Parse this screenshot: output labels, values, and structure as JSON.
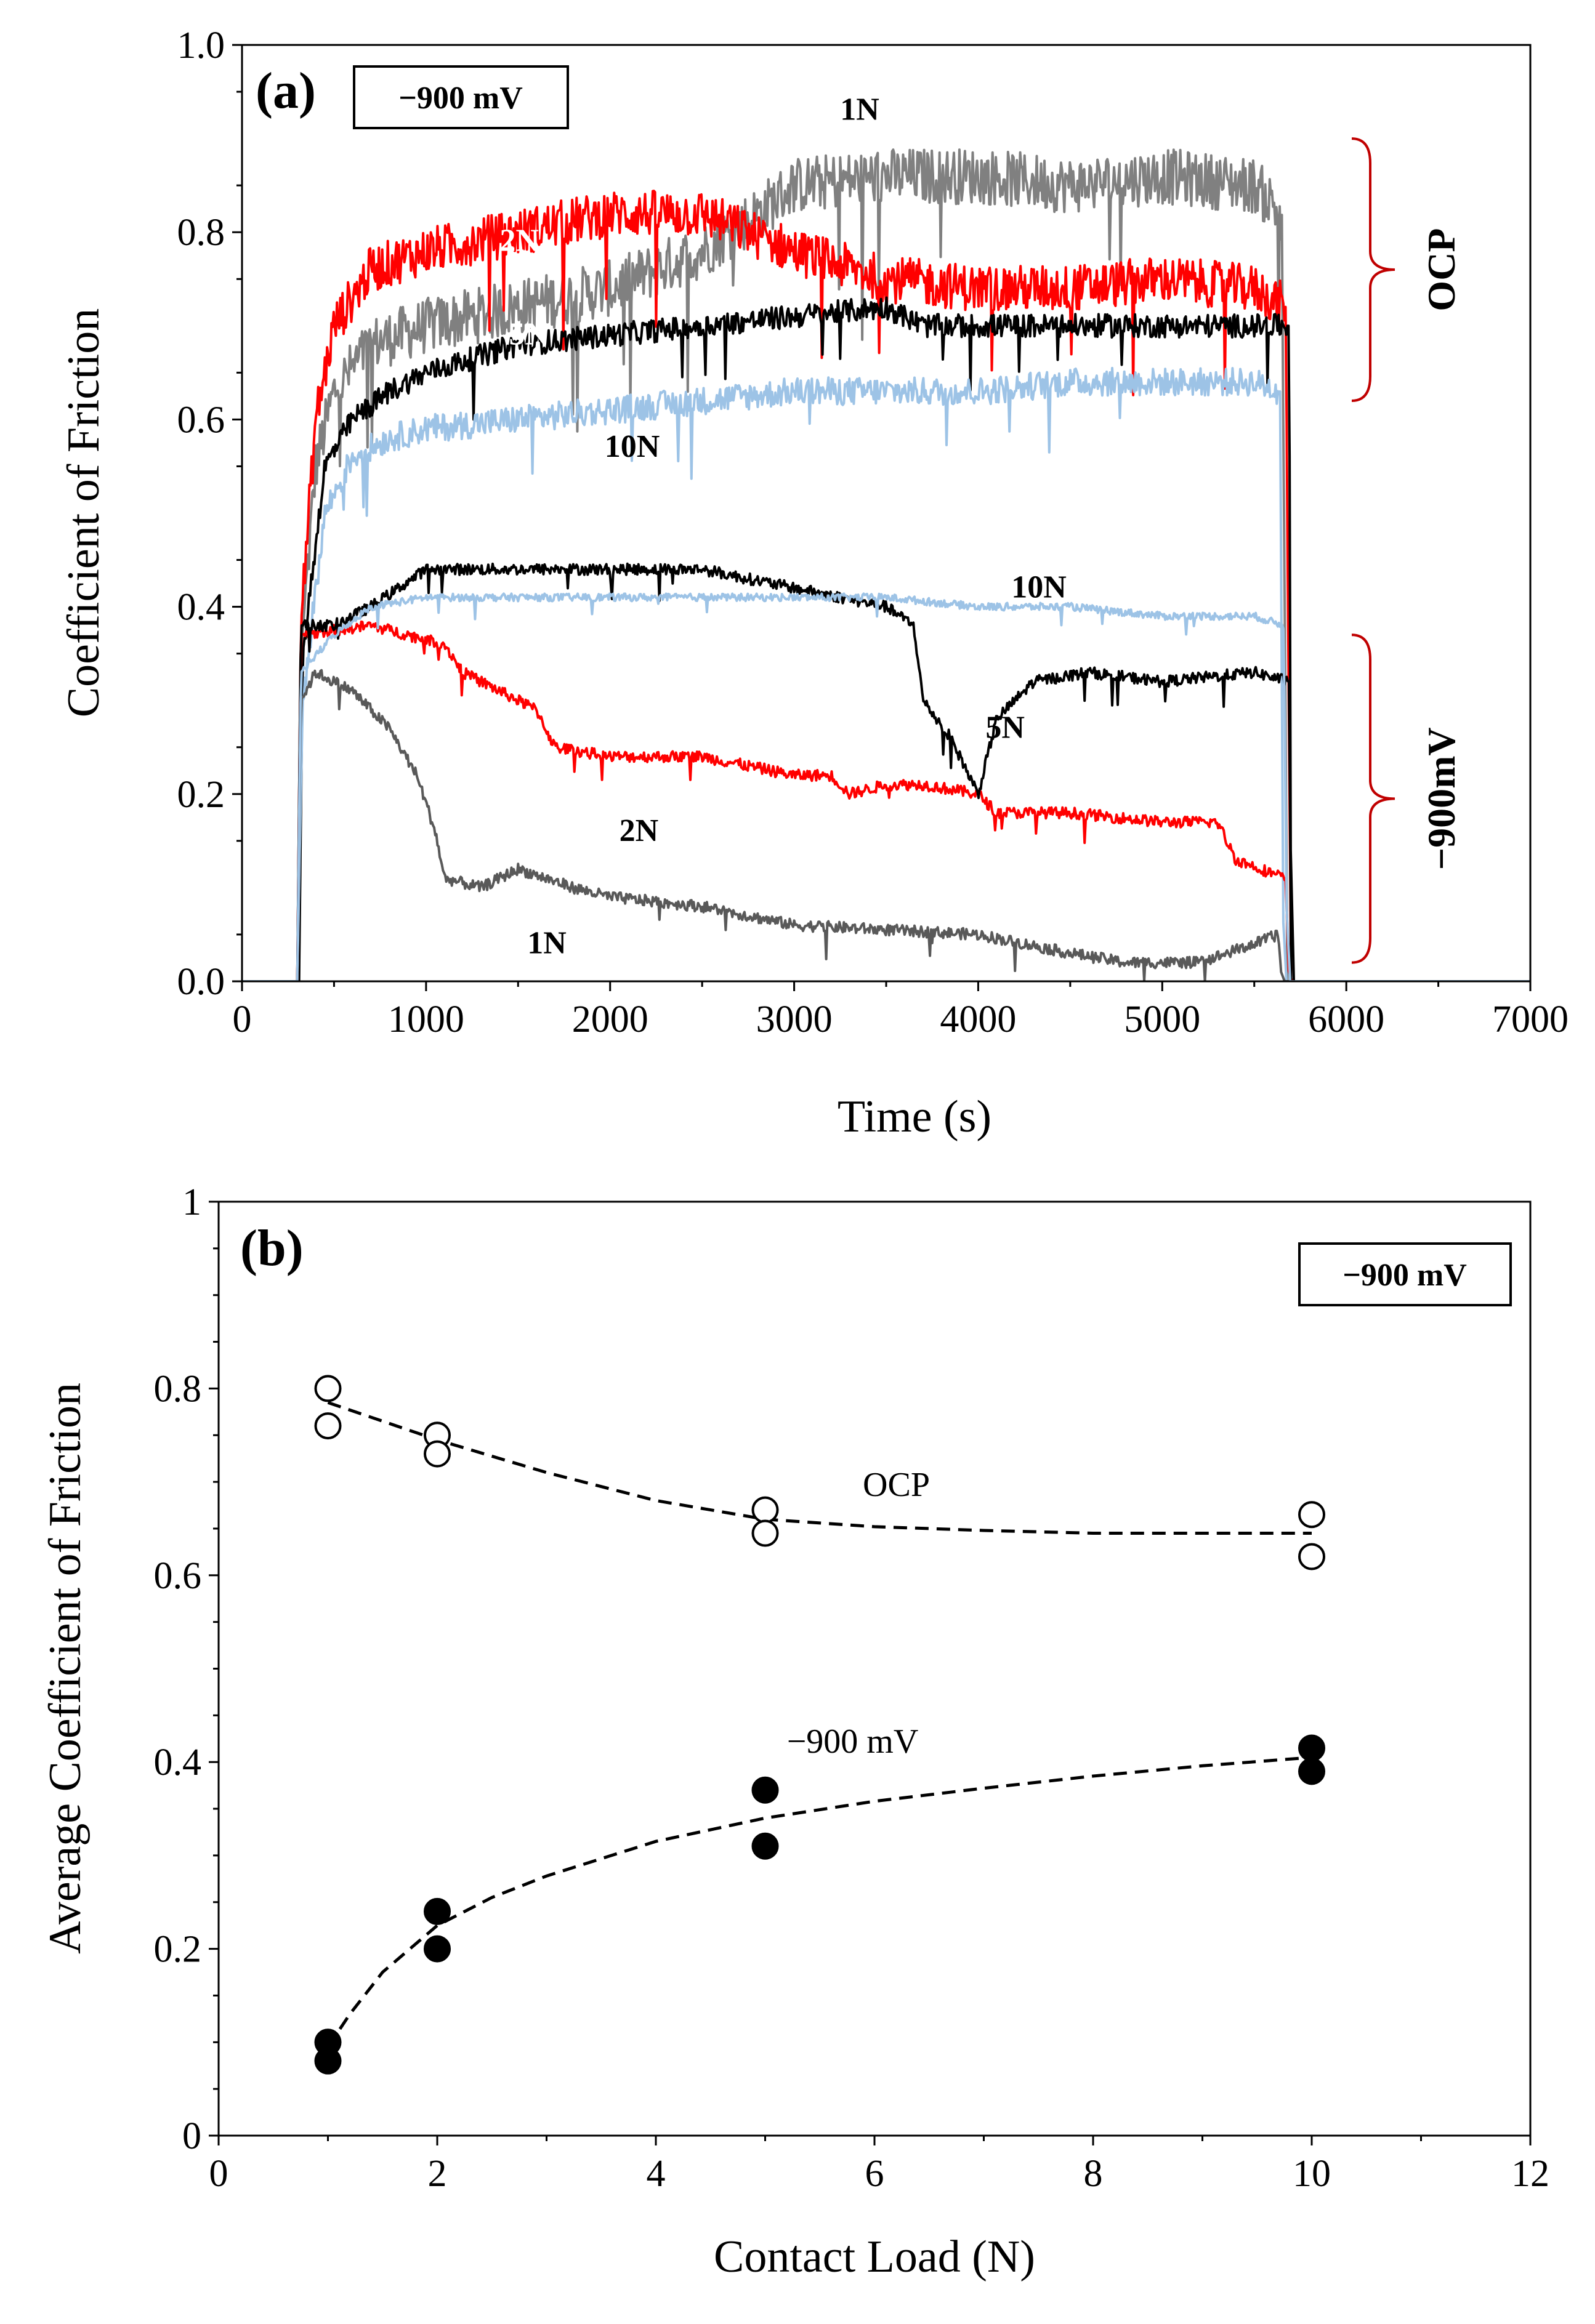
{
  "colors": {
    "n1_ocp": "#808080",
    "n2_ocp": "#ff0000",
    "n5_ocp": "#000000",
    "n10_ocp": "#9dc3e6",
    "n1_cat": "#595959",
    "n2_cat": "#ff0000",
    "n5_cat": "#000000",
    "n10_cat": "#9dc3e6",
    "bracket": "#c00000"
  },
  "chart_data": [
    {
      "id": "a",
      "type": "line",
      "panel_label": "(a)",
      "box_label": "−900 mV",
      "xlabel": "Time (s)",
      "ylabel": "Coefficient of Friction",
      "xlim": [
        0,
        7000
      ],
      "ylim": [
        0,
        1.0
      ],
      "x_ticks": [
        "0",
        "1000",
        "2000",
        "3000",
        "4000",
        "5000",
        "6000",
        "7000"
      ],
      "y_ticks": [
        "0.0",
        "0.2",
        "0.4",
        "0.6",
        "0.8",
        "1.0"
      ],
      "regions": [
        {
          "label": "OCP",
          "range": [
            0.62,
            0.9
          ],
          "position": "right"
        },
        {
          "label": "−900mV",
          "range": [
            0.02,
            0.37
          ],
          "position": "right"
        }
      ],
      "series": [
        {
          "name": "1N",
          "condition": "OCP",
          "color_key": "n1_ocp",
          "label": "1N",
          "label_at": [
            3250,
            0.92
          ],
          "label_color": "#000000",
          "noise": 0.06,
          "points": [
            [
              0,
              0
            ],
            [
              310,
              0
            ],
            [
              320,
              0.35
            ],
            [
              400,
              0.55
            ],
            [
              500,
              0.63
            ],
            [
              700,
              0.68
            ],
            [
              1000,
              0.7
            ],
            [
              1500,
              0.72
            ],
            [
              2000,
              0.74
            ],
            [
              2500,
              0.78
            ],
            [
              2800,
              0.82
            ],
            [
              3000,
              0.85
            ],
            [
              3500,
              0.86
            ],
            [
              4000,
              0.86
            ],
            [
              4500,
              0.85
            ],
            [
              5000,
              0.86
            ],
            [
              5500,
              0.85
            ],
            [
              5650,
              0.82
            ],
            [
              5680,
              0
            ],
            [
              7000,
              0
            ]
          ]
        },
        {
          "name": "2N",
          "condition": "OCP",
          "color_key": "n2_ocp",
          "label": "2N",
          "label_at": [
            1400,
            0.78
          ],
          "label_color": "#ffffff",
          "noise": 0.05,
          "points": [
            [
              0,
              0
            ],
            [
              300,
              0
            ],
            [
              320,
              0.38
            ],
            [
              400,
              0.6
            ],
            [
              500,
              0.7
            ],
            [
              700,
              0.76
            ],
            [
              1000,
              0.78
            ],
            [
              1500,
              0.8
            ],
            [
              2000,
              0.82
            ],
            [
              2500,
              0.82
            ],
            [
              3000,
              0.78
            ],
            [
              3500,
              0.75
            ],
            [
              4000,
              0.74
            ],
            [
              4500,
              0.74
            ],
            [
              5000,
              0.75
            ],
            [
              5500,
              0.74
            ],
            [
              5670,
              0.72
            ],
            [
              5700,
              0
            ],
            [
              7000,
              0
            ]
          ]
        },
        {
          "name": "5N",
          "condition": "OCP",
          "color_key": "n5_ocp",
          "label": "5N",
          "label_at": [
            1450,
            0.68
          ],
          "label_color": "#ffffff",
          "noise": 0.025,
          "points": [
            [
              0,
              0
            ],
            [
              310,
              0
            ],
            [
              330,
              0.35
            ],
            [
              450,
              0.55
            ],
            [
              600,
              0.6
            ],
            [
              800,
              0.63
            ],
            [
              1000,
              0.65
            ],
            [
              1500,
              0.68
            ],
            [
              2000,
              0.69
            ],
            [
              2500,
              0.7
            ],
            [
              3000,
              0.71
            ],
            [
              3500,
              0.72
            ],
            [
              3700,
              0.7
            ],
            [
              4500,
              0.7
            ],
            [
              5000,
              0.7
            ],
            [
              5500,
              0.7
            ],
            [
              5690,
              0.7
            ],
            [
              5700,
              0
            ],
            [
              7000,
              0
            ]
          ]
        },
        {
          "name": "10N",
          "condition": "OCP",
          "color_key": "n10_ocp",
          "label": "10N",
          "label_at": [
            1970,
            0.56
          ],
          "label_color": "#000000",
          "noise": 0.03,
          "points": [
            [
              0,
              0
            ],
            [
              300,
              0
            ],
            [
              330,
              0.3
            ],
            [
              450,
              0.5
            ],
            [
              600,
              0.56
            ],
            [
              800,
              0.58
            ],
            [
              1000,
              0.59
            ],
            [
              1500,
              0.6
            ],
            [
              2000,
              0.61
            ],
            [
              2500,
              0.62
            ],
            [
              3000,
              0.63
            ],
            [
              3500,
              0.63
            ],
            [
              4000,
              0.63
            ],
            [
              4500,
              0.64
            ],
            [
              5000,
              0.64
            ],
            [
              5500,
              0.64
            ],
            [
              5640,
              0.63
            ],
            [
              5660,
              0
            ],
            [
              7000,
              0
            ]
          ]
        },
        {
          "name": "1N",
          "condition": "-900mV",
          "color_key": "n1_cat",
          "label": "1N",
          "label_at": [
            1550,
            0.03
          ],
          "label_color": "#000000",
          "noise": 0.012,
          "points": [
            [
              0,
              0
            ],
            [
              300,
              0
            ],
            [
              320,
              0.3
            ],
            [
              400,
              0.33
            ],
            [
              600,
              0.31
            ],
            [
              800,
              0.27
            ],
            [
              950,
              0.22
            ],
            [
              1050,
              0.16
            ],
            [
              1100,
              0.11
            ],
            [
              1300,
              0.1
            ],
            [
              1500,
              0.12
            ],
            [
              1800,
              0.1
            ],
            [
              2000,
              0.09
            ],
            [
              2500,
              0.08
            ],
            [
              3000,
              0.06
            ],
            [
              3500,
              0.055
            ],
            [
              4000,
              0.05
            ],
            [
              4500,
              0.03
            ],
            [
              4800,
              0.02
            ],
            [
              5200,
              0.02
            ],
            [
              5500,
              0.04
            ],
            [
              5630,
              0.05
            ],
            [
              5650,
              0
            ],
            [
              7000,
              0
            ]
          ]
        },
        {
          "name": "2N",
          "condition": "-900mV",
          "color_key": "n2_cat",
          "label": "2N",
          "label_at": [
            2050,
            0.15
          ],
          "label_color": "#000000",
          "noise": 0.012,
          "points": [
            [
              0,
              0
            ],
            [
              300,
              0
            ],
            [
              320,
              0.37
            ],
            [
              700,
              0.38
            ],
            [
              1100,
              0.36
            ],
            [
              1200,
              0.33
            ],
            [
              1400,
              0.31
            ],
            [
              1600,
              0.29
            ],
            [
              1700,
              0.25
            ],
            [
              2000,
              0.24
            ],
            [
              2500,
              0.24
            ],
            [
              3000,
              0.22
            ],
            [
              3200,
              0.22
            ],
            [
              3300,
              0.2
            ],
            [
              3500,
              0.21
            ],
            [
              3700,
              0.21
            ],
            [
              4000,
              0.2
            ],
            [
              4100,
              0.18
            ],
            [
              4500,
              0.18
            ],
            [
              5000,
              0.17
            ],
            [
              5300,
              0.17
            ],
            [
              5400,
              0.13
            ],
            [
              5670,
              0.11
            ],
            [
              5690,
              0
            ],
            [
              7000,
              0
            ]
          ]
        },
        {
          "name": "5N",
          "condition": "-900mV",
          "color_key": "n5_cat",
          "label": "5N",
          "label_at": [
            4040,
            0.26
          ],
          "label_color": "#000000",
          "noise": 0.012,
          "points": [
            [
              0,
              0
            ],
            [
              300,
              0
            ],
            [
              320,
              0.38
            ],
            [
              500,
              0.38
            ],
            [
              700,
              0.4
            ],
            [
              1000,
              0.44
            ],
            [
              1500,
              0.44
            ],
            [
              2000,
              0.44
            ],
            [
              2500,
              0.44
            ],
            [
              3000,
              0.42
            ],
            [
              3500,
              0.4
            ],
            [
              3650,
              0.38
            ],
            [
              3700,
              0.3
            ],
            [
              3850,
              0.26
            ],
            [
              4000,
              0.2
            ],
            [
              4100,
              0.28
            ],
            [
              4300,
              0.32
            ],
            [
              4600,
              0.33
            ],
            [
              5000,
              0.32
            ],
            [
              5500,
              0.33
            ],
            [
              5690,
              0.32
            ],
            [
              5700,
              0
            ],
            [
              7000,
              0
            ]
          ]
        },
        {
          "name": "10N",
          "condition": "-900mV",
          "color_key": "n10_cat",
          "label": "10N",
          "label_at": [
            4180,
            0.41
          ],
          "label_color": "#000000",
          "noise": 0.008,
          "points": [
            [
              0,
              0
            ],
            [
              300,
              0
            ],
            [
              320,
              0.33
            ],
            [
              500,
              0.37
            ],
            [
              700,
              0.4
            ],
            [
              1000,
              0.41
            ],
            [
              1500,
              0.41
            ],
            [
              2000,
              0.41
            ],
            [
              2500,
              0.41
            ],
            [
              3000,
              0.41
            ],
            [
              3500,
              0.41
            ],
            [
              4000,
              0.4
            ],
            [
              4500,
              0.4
            ],
            [
              5000,
              0.39
            ],
            [
              5500,
              0.39
            ],
            [
              5660,
              0.38
            ],
            [
              5680,
              0
            ],
            [
              7000,
              0
            ]
          ]
        }
      ]
    },
    {
      "id": "b",
      "type": "scatter",
      "panel_label": "(b)",
      "box_label": "−900 mV",
      "xlabel": "Contact Load (N)",
      "ylabel": "Average Coefficient of Friction",
      "xlim": [
        0,
        12
      ],
      "ylim": [
        0,
        1
      ],
      "x_ticks": [
        "0",
        "2",
        "4",
        "6",
        "8",
        "10",
        "12"
      ],
      "y_ticks": [
        "0",
        "0.2",
        "0.4",
        "0.6",
        "0.8",
        "1"
      ],
      "series": [
        {
          "name": "OCP",
          "marker": "open-circle",
          "label": "OCP",
          "label_at": [
            6.2,
            0.685
          ],
          "x": [
            1,
            1,
            2,
            2,
            5,
            5,
            10,
            10
          ],
          "y": [
            0.8,
            0.76,
            0.75,
            0.73,
            0.67,
            0.645,
            0.665,
            0.62
          ],
          "fit": {
            "x": [
              1,
              2,
              3,
              4,
              5,
              6,
              7,
              8,
              9,
              10
            ],
            "y": [
              0.785,
              0.745,
              0.71,
              0.68,
              0.66,
              0.652,
              0.648,
              0.645,
              0.645,
              0.645
            ]
          }
        },
        {
          "name": "−900 mV",
          "marker": "filled-circle",
          "label": "−900 mV",
          "label_at": [
            5.8,
            0.41
          ],
          "x": [
            1,
            1,
            2,
            2,
            5,
            5,
            10,
            10
          ],
          "y": [
            0.1,
            0.08,
            0.24,
            0.2,
            0.37,
            0.31,
            0.415,
            0.39
          ],
          "fit": {
            "x": [
              1,
              1.2,
              1.5,
              2,
              2.5,
              3,
              4,
              5,
              6,
              7,
              8,
              9,
              10
            ],
            "y": [
              0.095,
              0.13,
              0.175,
              0.225,
              0.255,
              0.278,
              0.315,
              0.34,
              0.358,
              0.372,
              0.385,
              0.396,
              0.405
            ]
          }
        }
      ]
    }
  ]
}
